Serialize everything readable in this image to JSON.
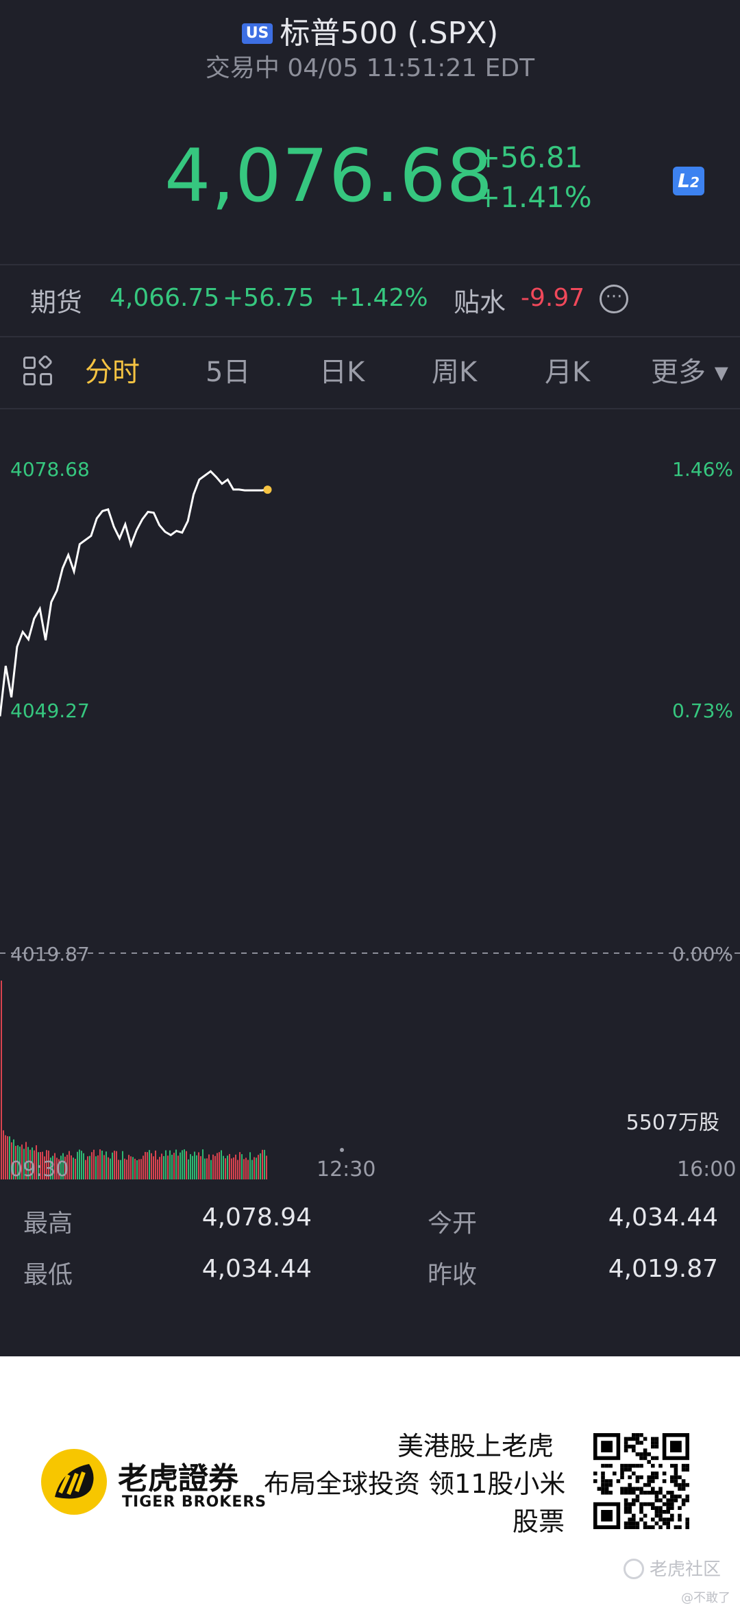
{
  "header": {
    "market_badge": "US",
    "title": "标普500 (.SPX)",
    "status": "交易中 04/05 11:51:21 EDT",
    "price": "4,076.68",
    "change": "+56.81",
    "change_pct": "+1.41%",
    "l2_label": "L",
    "l2_sub": "2"
  },
  "futures": {
    "label": "期货",
    "value": "4,066.75",
    "change": "+56.75",
    "change_pct": "+1.42%",
    "basis_label": "贴水",
    "basis_value": "-9.97",
    "more_glyph": "···"
  },
  "tabs": [
    {
      "label": "分时",
      "active": true
    },
    {
      "label": "5日"
    },
    {
      "label": "日K"
    },
    {
      "label": "周K"
    },
    {
      "label": "月K"
    },
    {
      "label": "更多 ▾"
    }
  ],
  "chart_data": {
    "type": "line",
    "title": "",
    "x_start": "09:30",
    "x_mid": "12:30",
    "x_end": "16:00",
    "y_labels_left": [
      "4078.68",
      "4049.27",
      "4019.87"
    ],
    "y_labels_right": [
      "1.46%",
      "0.73%",
      "0.00%"
    ],
    "previous_close": 4019.87,
    "volume_label": "5507万股",
    "series": [
      {
        "x_minutes_from_open": [
          0,
          3,
          6,
          9,
          12,
          15,
          18,
          21,
          24,
          27,
          30,
          33,
          36,
          39,
          42,
          45,
          48,
          51,
          54,
          57,
          60,
          63,
          66,
          69,
          72,
          75,
          78,
          81,
          84,
          87,
          90,
          93,
          96,
          99,
          102,
          105,
          108,
          111,
          114,
          117,
          120,
          123,
          126,
          129,
          132,
          135,
          138,
          141
        ],
        "values": [
          4049.3,
          4055.4,
          4051.6,
          4057.7,
          4059.5,
          4058.6,
          4061.1,
          4062.3,
          4058.5,
          4063.1,
          4064.5,
          4067.2,
          4068.8,
          4066.8,
          4070.1,
          4070.6,
          4071.1,
          4073.2,
          4074.1,
          4074.3,
          4072.2,
          4070.8,
          4072.5,
          4070.0,
          4071.8,
          4073.1,
          4074.0,
          4073.9,
          4072.4,
          4071.6,
          4071.2,
          4071.7,
          4071.5,
          4072.9,
          4076.1,
          4077.9,
          4078.4,
          4078.9,
          4078.2,
          4077.4,
          4077.9,
          4076.7,
          4076.7,
          4076.6,
          4076.6,
          4076.6,
          4076.6,
          4076.68
        ]
      }
    ]
  },
  "stats": {
    "high_label": "最高",
    "high_value": "4,078.94",
    "open_label": "今开",
    "open_value": "4,034.44",
    "low_label": "最低",
    "low_value": "4,034.44",
    "prevclose_label": "昨收",
    "prevclose_value": "4,019.87"
  },
  "footer": {
    "brand_cn": "老虎證券",
    "brand_en": "TIGER BROKERS",
    "promo_line1": "美港股上老虎",
    "promo_line2": "布局全球投资 领11股小米",
    "promo_line3": "股票",
    "community": "老虎社区",
    "watermark": "@不敢了"
  },
  "colors": {
    "up": "#36c77f",
    "down": "#f0485a",
    "active_tab": "#f5c342",
    "background": "#1f2029"
  }
}
